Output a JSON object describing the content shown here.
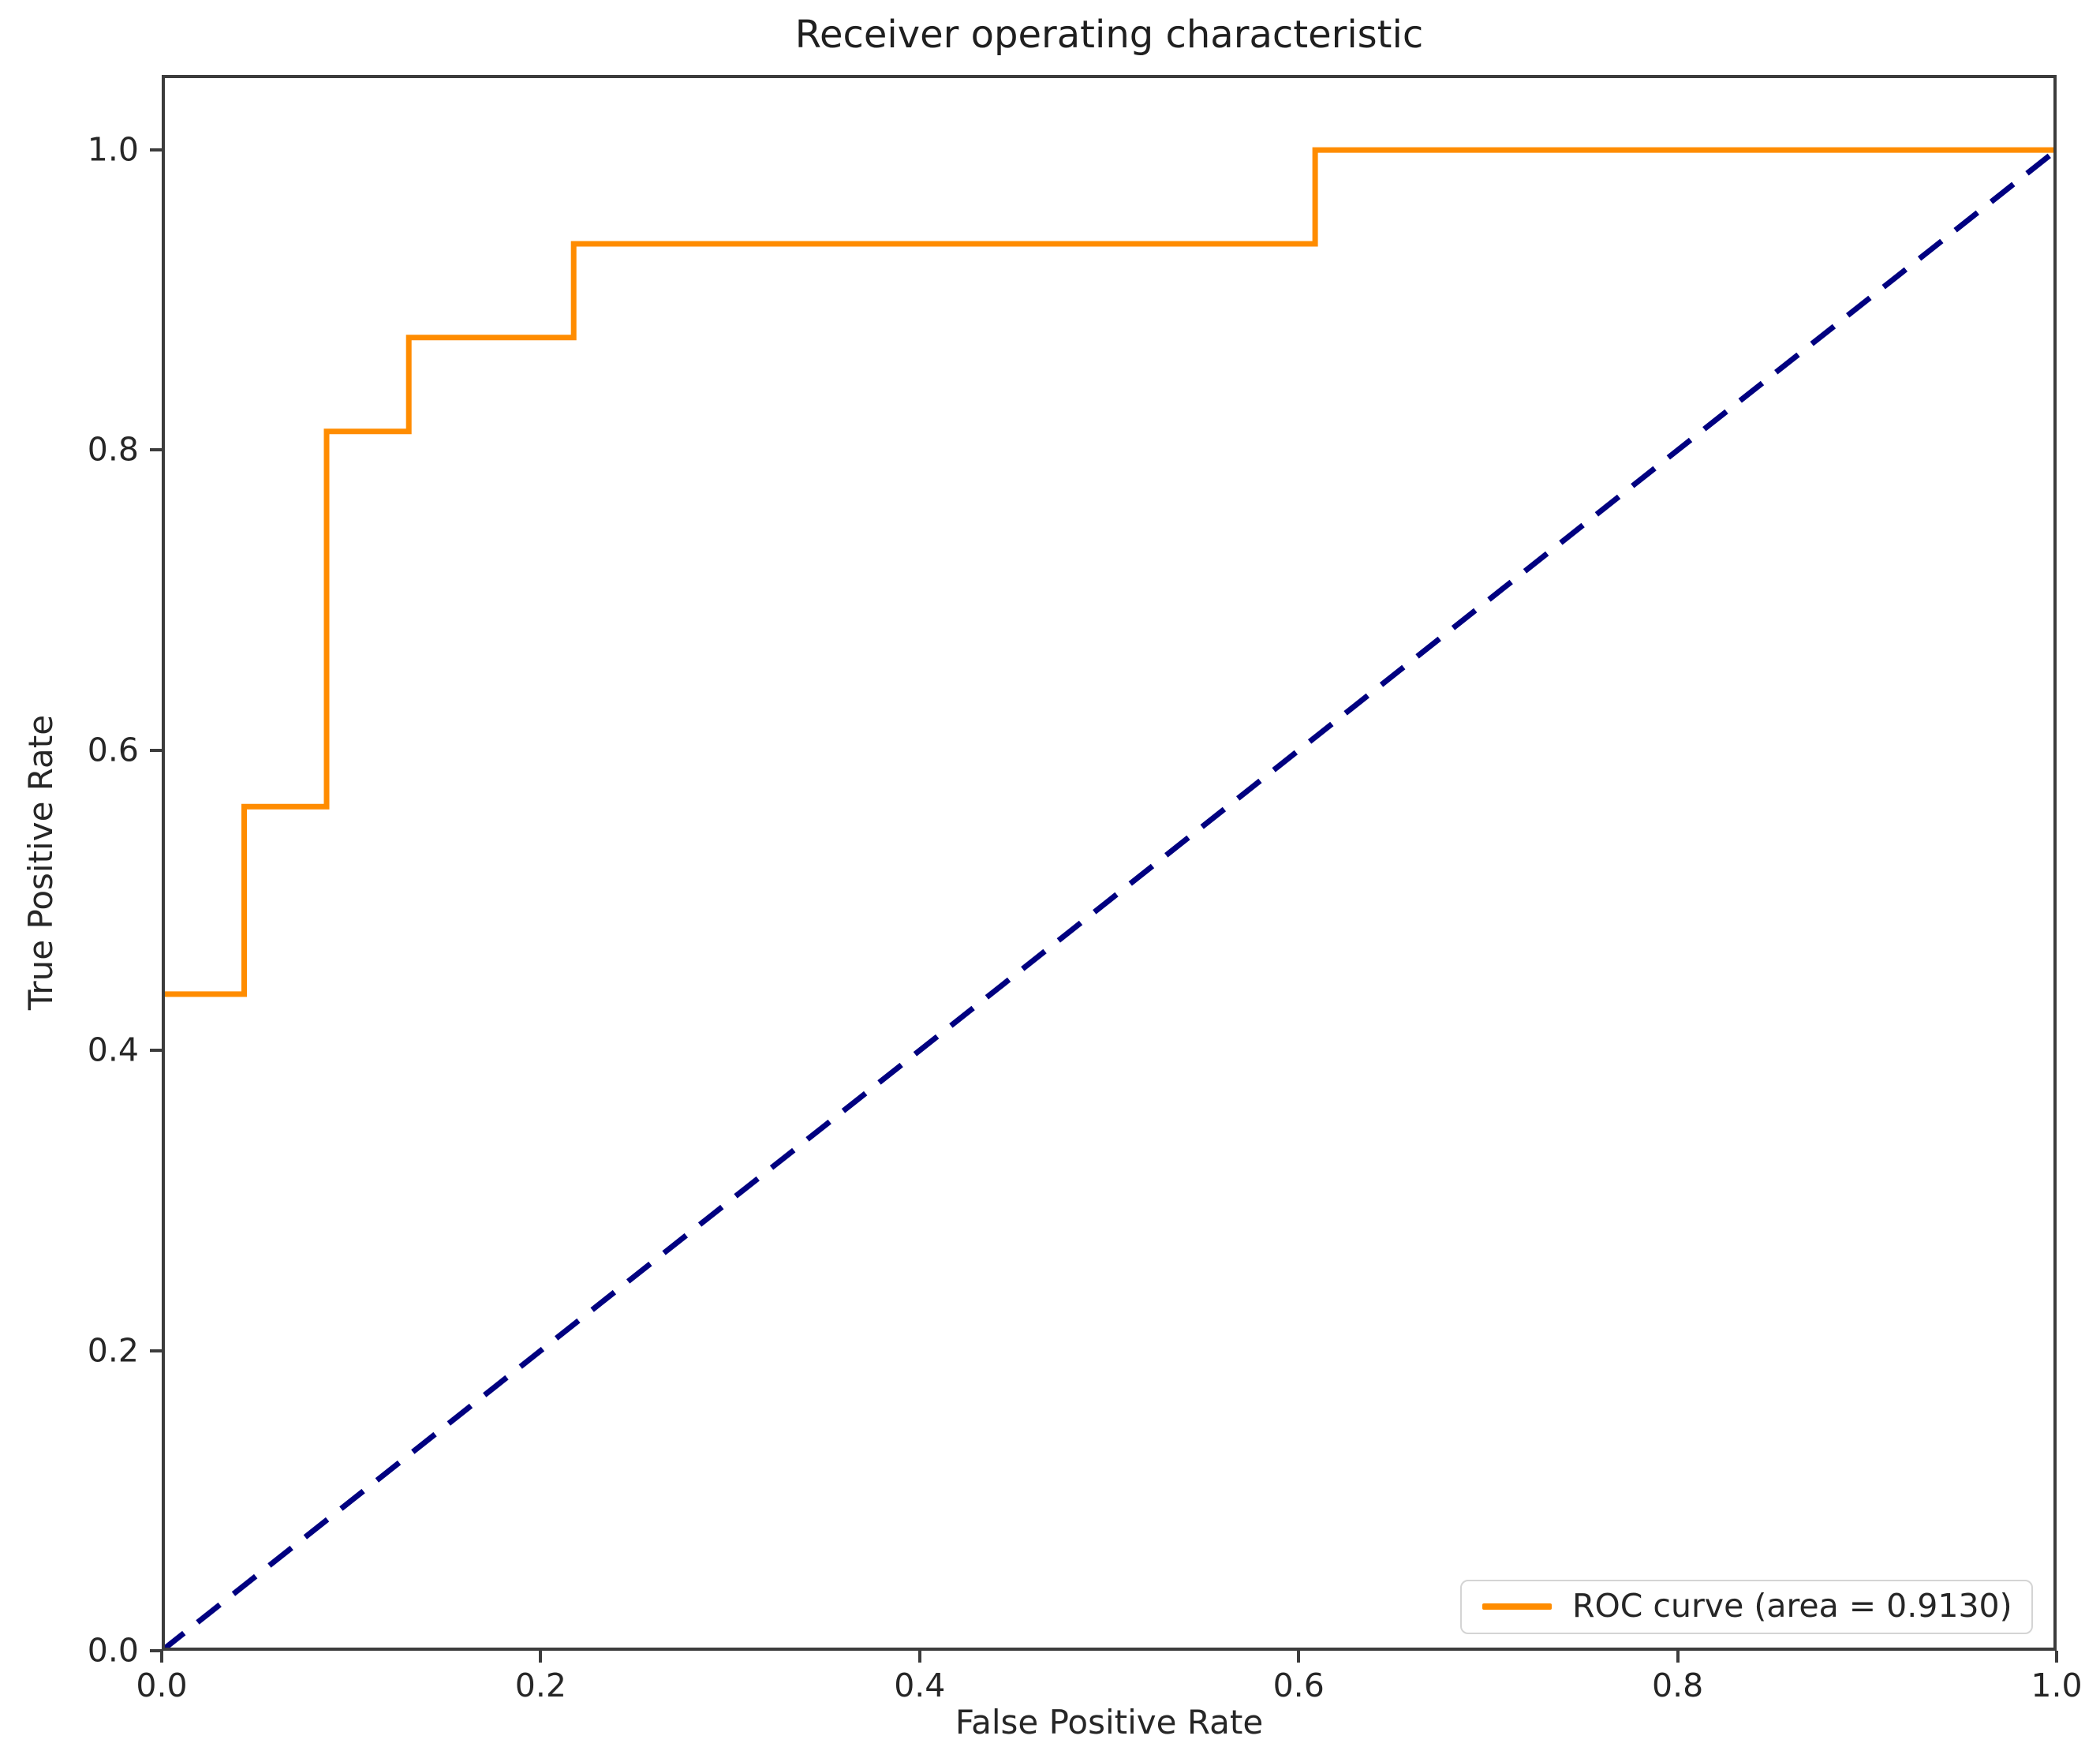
{
  "chart_data": {
    "type": "line",
    "title": "Receiver operating characteristic",
    "xlabel": "False Positive Rate",
    "ylabel": "True Positive Rate",
    "xlim": [
      0.0,
      1.0
    ],
    "ylim": [
      0.0,
      1.05
    ],
    "grid": false,
    "x_ticks": [
      0.0,
      0.2,
      0.4,
      0.6,
      0.8,
      1.0
    ],
    "x_tick_labels": [
      "0.0",
      "0.2",
      "0.4",
      "0.6",
      "0.8",
      "1.0"
    ],
    "y_ticks": [
      0.0,
      0.2,
      0.4,
      0.6,
      0.8,
      1.0
    ],
    "y_tick_labels": [
      "0.0",
      "0.2",
      "0.4",
      "0.6",
      "0.8",
      "1.0"
    ],
    "series": [
      {
        "name": "chance-diagonal",
        "color": "#000080",
        "line_style": "dashed",
        "line_width": 7,
        "x": [
          0.0,
          1.0
        ],
        "y": [
          0.0,
          1.0
        ]
      },
      {
        "name": "ROC curve",
        "color": "#ff8c00",
        "line_style": "solid",
        "line_width": 7,
        "area": 0.913,
        "x": [
          0.0,
          0.0,
          0.0435,
          0.0435,
          0.087,
          0.087,
          0.1304,
          0.1304,
          0.2174,
          0.2174,
          0.6087,
          0.6087,
          1.0
        ],
        "y": [
          0.0,
          0.4375,
          0.4375,
          0.5625,
          0.5625,
          0.8125,
          0.8125,
          0.875,
          0.875,
          0.9375,
          0.9375,
          1.0,
          1.0
        ]
      }
    ],
    "legend": {
      "position": "lower right",
      "entries": [
        {
          "label": "ROC curve (area = 0.9130)",
          "color": "#ff8c00",
          "line_style": "solid"
        }
      ]
    }
  },
  "colors": {
    "roc_curve": "#ff8c00",
    "chance_line": "#000080",
    "spine": "#3c3c3c",
    "background": "#ffffff",
    "legend_border": "#d4d4d4"
  }
}
